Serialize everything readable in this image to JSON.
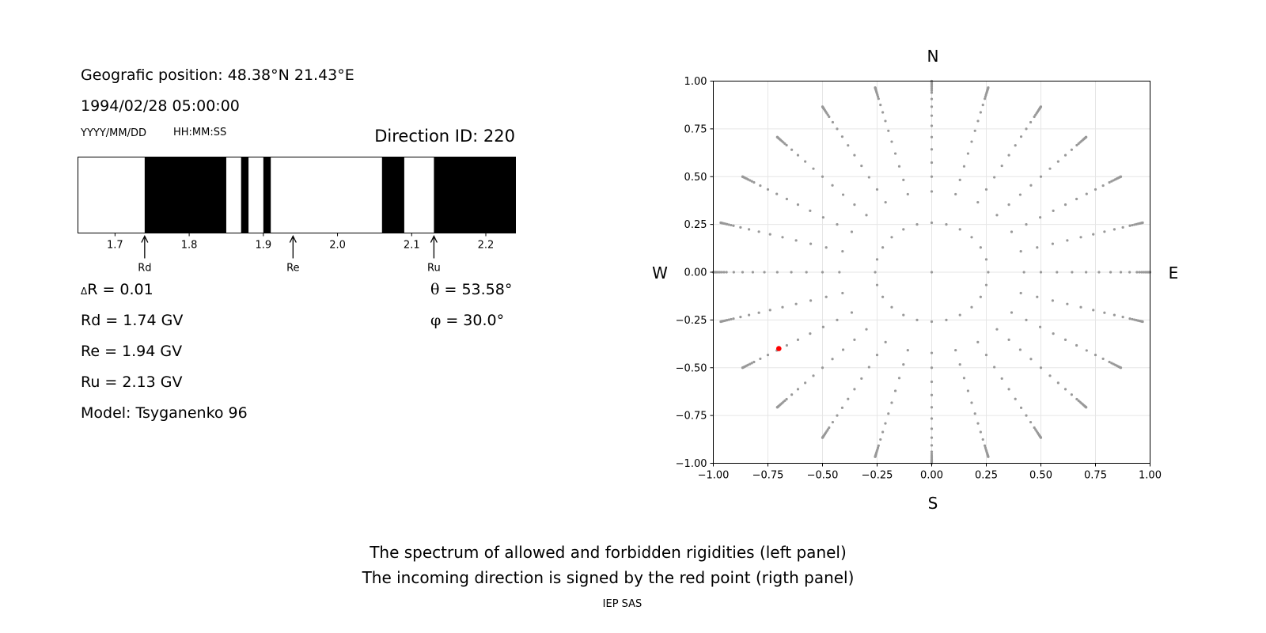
{
  "info": {
    "position": "Geografic position: 48.38°N 21.43°E",
    "datetime": "1994/02/28 05:00:00",
    "date_format": "YYYY/MM/DD",
    "time_format": "HH:MM:SS",
    "direction_id": "Direction ID: 220"
  },
  "results": {
    "delta_r_symbol": "Δ",
    "delta_r": "R = 0.01",
    "rd": "Rd = 1.74 GV",
    "re": "Re = 1.94 GV",
    "ru": "Ru = 2.13 GV",
    "model": "Model: Tsyganenko 96",
    "theta_symbol": "θ",
    "theta": " = 53.58°",
    "phi_symbol": "φ",
    "phi": " = 30.0°"
  },
  "footer": {
    "caption_line1": "The spectrum of allowed and forbidden rigidities (left panel)",
    "caption_line2": "The incoming direction is signed by the red point (rigth panel)",
    "credit": "IEP SAS"
  },
  "colors": {
    "forbidden": "#000000",
    "allowed": "#ffffff",
    "grid_points": "#999999",
    "direction_point": "#ff0000",
    "gridlines": "#e6e6e6"
  },
  "chart_data": [
    {
      "type": "bar",
      "description_kind": "rigidity spectrum",
      "xlim": [
        1.65,
        2.24
      ],
      "xticks": [
        1.7,
        1.8,
        1.9,
        2.0,
        2.1,
        2.2
      ],
      "xticklabels": [
        "1.7",
        "1.8",
        "1.9",
        "2.0",
        "2.1",
        "2.2"
      ],
      "forbidden_intervals": [
        [
          1.74,
          1.85
        ],
        [
          1.87,
          1.88
        ],
        [
          1.9,
          1.91
        ],
        [
          2.06,
          2.09
        ],
        [
          2.13,
          2.24
        ]
      ],
      "markers": [
        {
          "label": "Rd",
          "value": 1.74
        },
        {
          "label": "Re",
          "value": 1.94
        },
        {
          "label": "Ru",
          "value": 2.13
        }
      ]
    },
    {
      "type": "scatter",
      "xlim": [
        -1.0,
        1.0
      ],
      "ylim": [
        -1.0,
        1.0
      ],
      "xticks": [
        -1.0,
        -0.75,
        -0.5,
        -0.25,
        0.0,
        0.25,
        0.5,
        0.75,
        1.0
      ],
      "xticklabels": [
        "−1.00",
        "−0.75",
        "−0.50",
        "−0.25",
        "0.00",
        "0.25",
        "0.50",
        "0.75",
        "1.00"
      ],
      "yticks": [
        -1.0,
        -0.75,
        -0.5,
        -0.25,
        0.0,
        0.25,
        0.5,
        0.75,
        1.0
      ],
      "yticklabels": [
        "−1.00",
        "−0.75",
        "−0.50",
        "−0.25",
        "0.00",
        "0.25",
        "0.50",
        "0.75",
        "1.00"
      ],
      "grid": true,
      "compass": {
        "north": "N",
        "south": "S",
        "west": "W",
        "east": "E"
      },
      "direction_grid": {
        "zenith_degrees": [
          15,
          25,
          30,
          35,
          40,
          45,
          50,
          55,
          60,
          65,
          70,
          72,
          74,
          76,
          78,
          80,
          82,
          84,
          86,
          88,
          90
        ],
        "azimuth_step_degrees": 15,
        "center_point": [
          0.0,
          0.0
        ]
      },
      "highlight_point": {
        "x": -0.7,
        "y": -0.4
      }
    }
  ]
}
